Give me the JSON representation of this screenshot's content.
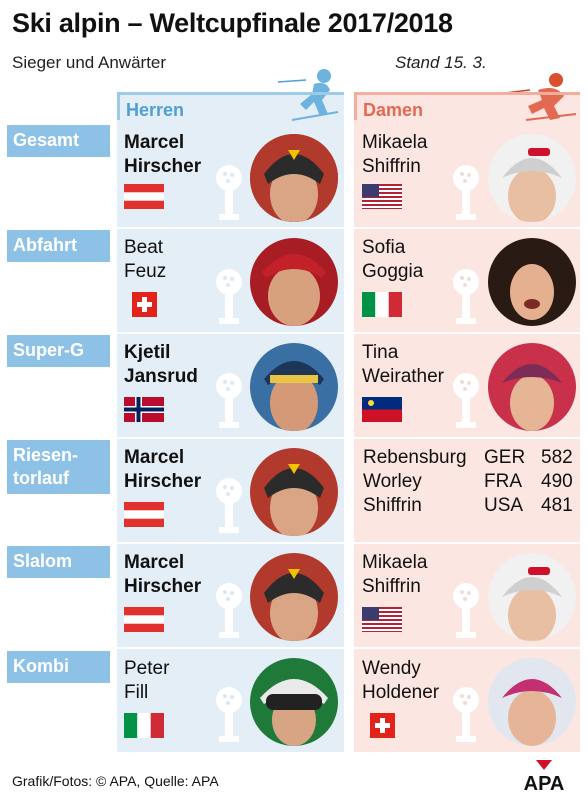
{
  "title": "Ski alpin – Weltcupfinale 2017/2018",
  "subtitle": "Sieger und Anwärter",
  "stand": "Stand 15. 3.",
  "columns": {
    "herren": "Herren",
    "damen": "Damen"
  },
  "categories": [
    {
      "label": "Gesamt",
      "herren": {
        "line1": "Marcel",
        "line2": "Hirscher",
        "bold": true,
        "flag": "AUT"
      },
      "damen": {
        "line1": "Mikaela",
        "line2": "Shiffrin",
        "bold": false,
        "flag": "USA"
      }
    },
    {
      "label": "Abfahrt",
      "herren": {
        "line1": "Beat",
        "line2": "Feuz",
        "bold": false,
        "flag": "SUI"
      },
      "damen": {
        "line1": "Sofia",
        "line2": "Goggia",
        "bold": false,
        "flag": "ITA"
      }
    },
    {
      "label": "Super-G",
      "herren": {
        "line1": "Kjetil",
        "line2": "Jansrud",
        "bold": true,
        "flag": "NOR"
      },
      "damen": {
        "line1": "Tina",
        "line2": "Weirather",
        "bold": false,
        "flag": "LIE"
      }
    },
    {
      "label_line1": "Riesen-",
      "label_line2": "torlauf",
      "herren": {
        "line1": "Marcel",
        "line2": "Hirscher",
        "bold": true,
        "flag": "AUT"
      },
      "damen_table": [
        {
          "name": "Rebensburg",
          "nation": "GER",
          "points": "582"
        },
        {
          "name": "Worley",
          "nation": "FRA",
          "points": "490"
        },
        {
          "name": "Shiffrin",
          "nation": "USA",
          "points": "481"
        }
      ]
    },
    {
      "label": "Slalom",
      "herren": {
        "line1": "Marcel",
        "line2": "Hirscher",
        "bold": true,
        "flag": "AUT"
      },
      "damen": {
        "line1": "Mikaela",
        "line2": "Shiffrin",
        "bold": false,
        "flag": "USA"
      }
    },
    {
      "label": "Kombi",
      "herren": {
        "line1": "Peter",
        "line2": "Fill",
        "bold": false,
        "flag": "ITA"
      },
      "damen": {
        "line1": "Wendy",
        "line2": "Holdener",
        "bold": false,
        "flag": "SUI"
      }
    }
  ],
  "footer": "Grafik/Fotos: © APA, Quelle: APA",
  "logo": "APA",
  "colors": {
    "herren_accent": "#4e9fd6",
    "damen_accent": "#e26a52",
    "category_bg": "#8ec1e6",
    "herren_bg": "#e4eef6",
    "damen_bg": "#fbe6e1"
  }
}
